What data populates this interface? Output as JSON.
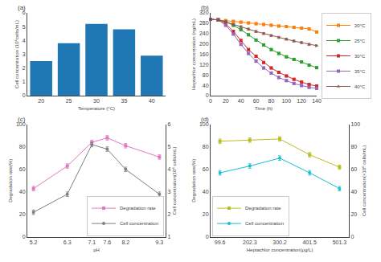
{
  "chart_data": [
    {
      "type": "bar",
      "categories": [
        "20",
        "25",
        "30",
        "35",
        "40"
      ],
      "values": [
        2.5,
        3.8,
        5.2,
        4.8,
        2.9
      ],
      "xlabel": "Temperature (°C)",
      "ylabel": "Cell concentration (10⁶cells/mL)",
      "ylim": [
        0,
        6
      ],
      "yticks": [
        0,
        1,
        2,
        3,
        4,
        5,
        6
      ],
      "grid": false,
      "annotations": [
        "(a)"
      ]
    },
    {
      "type": "line",
      "x": [
        0,
        10,
        20,
        30,
        40,
        50,
        60,
        70,
        80,
        90,
        100,
        110,
        120,
        130,
        140
      ],
      "series": [
        {
          "name": "20°C",
          "marker": "square",
          "values": [
            295,
            293,
            290,
            287,
            284,
            281,
            278,
            275,
            272,
            269,
            267,
            264,
            261,
            258,
            246
          ],
          "errors": [
            4,
            4,
            4,
            4,
            4,
            4,
            4,
            4,
            4,
            4,
            4,
            4,
            4,
            4,
            4
          ]
        },
        {
          "name": "25°C",
          "marker": "square",
          "values": [
            295,
            293,
            285,
            272,
            255,
            235,
            215,
            196,
            178,
            163,
            150,
            140,
            130,
            118,
            108
          ],
          "errors": [
            4,
            4,
            4,
            4,
            4,
            4,
            4,
            4,
            4,
            4,
            4,
            4,
            4,
            4,
            4
          ]
        },
        {
          "name": "30°C",
          "marker": "square",
          "values": [
            295,
            293,
            278,
            248,
            213,
            178,
            152,
            128,
            107,
            90,
            76,
            63,
            52,
            43,
            37
          ],
          "errors": [
            4,
            4,
            4,
            4,
            4,
            4,
            4,
            4,
            4,
            4,
            4,
            4,
            4,
            4,
            4
          ]
        },
        {
          "name": "35°C",
          "marker": "square",
          "values": [
            295,
            293,
            272,
            238,
            198,
            163,
            133,
            107,
            87,
            70,
            58,
            47,
            39,
            32,
            28
          ],
          "errors": [
            4,
            4,
            4,
            4,
            4,
            4,
            4,
            4,
            4,
            4,
            4,
            4,
            4,
            4,
            4
          ]
        },
        {
          "name": "40°C",
          "marker": "triangle-up",
          "values": [
            295,
            293,
            285,
            275,
            266,
            257,
            248,
            240,
            232,
            225,
            218,
            211,
            205,
            198,
            193
          ],
          "errors": [
            4,
            4,
            4,
            4,
            4,
            4,
            4,
            4,
            4,
            4,
            4,
            4,
            4,
            4,
            4
          ]
        }
      ],
      "xlabel": "Time (h)",
      "ylabel": "Heptachlor concentration (ng/mL)",
      "xlim": [
        0,
        140
      ],
      "xticks": [
        0,
        20,
        40,
        60,
        80,
        100,
        120,
        140
      ],
      "ylim": [
        0,
        320
      ],
      "yticks": [
        0,
        40,
        80,
        120,
        160,
        200,
        240,
        280,
        320
      ],
      "grid": false,
      "legend": "right",
      "annotations": [
        "(b)"
      ]
    },
    {
      "type": "line",
      "x": [
        5.2,
        6.3,
        7.1,
        7.6,
        8.2,
        9.3
      ],
      "series": [
        {
          "name": "Degradation rate",
          "marker": "square",
          "values": [
            43,
            63,
            84,
            88,
            81,
            71
          ],
          "errors": [
            2,
            2,
            2,
            2,
            2,
            2
          ]
        },
        {
          "name": "Cell concentration",
          "marker": "circle",
          "axis": "y2",
          "values": [
            2.1,
            2.9,
            5.1,
            4.9,
            4.0,
            2.9
          ],
          "errors": [
            0.1,
            0.1,
            0.1,
            0.1,
            0.1,
            0.1
          ]
        }
      ],
      "xlabel": "pH",
      "ylabel": "Degradation rate(%)",
      "y2label": "Cell concentration(10⁶ cells/mL)",
      "xlim": [
        5,
        9.5
      ],
      "xticks": [
        5.2,
        6.3,
        7.1,
        7.6,
        8.2,
        9.3
      ],
      "ylim": [
        0,
        100
      ],
      "yticks": [
        0,
        20,
        40,
        60,
        80,
        100
      ],
      "y2lim": [
        1,
        6
      ],
      "y2ticks": [
        1,
        2,
        3,
        4,
        5,
        6
      ],
      "grid": false,
      "legend": "lower right",
      "annotations": [
        "(c)"
      ]
    },
    {
      "type": "line",
      "categories": [
        "99.6",
        "202.3",
        "300.2",
        "401.5",
        "501.3"
      ],
      "series": [
        {
          "name": "Degradation rate",
          "marker": "square",
          "values": [
            85,
            86,
            87,
            73,
            62
          ],
          "errors": [
            2,
            2,
            2,
            2,
            2
          ]
        },
        {
          "name": "Cell concentration",
          "marker": "circle",
          "axis": "y2",
          "values": [
            57,
            63,
            70,
            57,
            43
          ],
          "errors": [
            2,
            2,
            2,
            2,
            2
          ]
        }
      ],
      "xlabel": "Heptachlor concentration(μg/L)",
      "ylabel": "Degradation rate(%)",
      "y2label": "Cell concentration(×10⁶ cells/mL)",
      "ylim": [
        0,
        100
      ],
      "yticks": [
        0,
        20,
        40,
        60,
        80,
        100
      ],
      "y2lim": [
        0,
        100
      ],
      "y2ticks": [
        0,
        20,
        40,
        60,
        80,
        100
      ],
      "grid": false,
      "legend": "lower left",
      "annotations": [
        "(d)"
      ]
    }
  ]
}
